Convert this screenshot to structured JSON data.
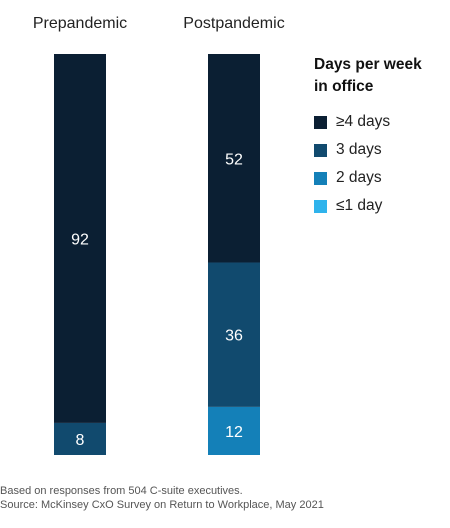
{
  "chart_data": {
    "type": "bar",
    "stacked": true,
    "orientation": "vertical",
    "categories": [
      "Prepandemic",
      "Postpandemic"
    ],
    "series": [
      {
        "name": "≥4 days",
        "color": "#0b1f33",
        "values": [
          92,
          52
        ]
      },
      {
        "name": "3 days",
        "color": "#114a6e",
        "values": [
          8,
          36
        ]
      },
      {
        "name": "2 days",
        "color": "#1480b8",
        "values": [
          0,
          12
        ]
      },
      {
        "name": "≤1 day",
        "color": "#2fb3ec",
        "values": [
          0,
          0
        ]
      }
    ],
    "data_labels": true,
    "ylim": [
      0,
      100
    ],
    "grid": false,
    "legend": {
      "title": "Days per week\nin office",
      "placement": "right"
    }
  },
  "footnotes": [
    "Based on responses from 504 C-suite executives.",
    "Source: McKinsey CxO Survey on Return to Workplace, May 2021"
  ]
}
